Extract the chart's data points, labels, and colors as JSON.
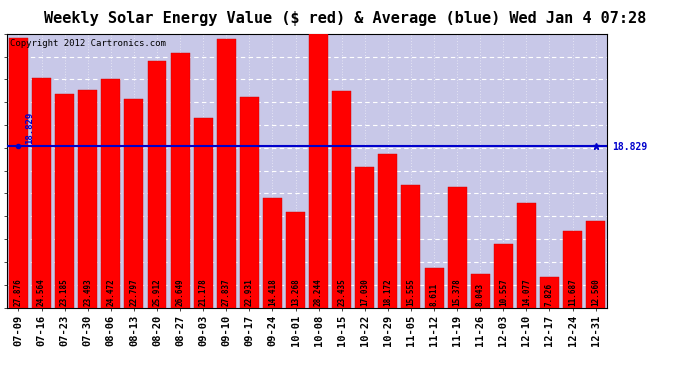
{
  "title": "Weekly Solar Energy Value ($ red) & Average (blue) Wed Jan 4 07:28",
  "copyright": "Copyright 2012 Cartronics.com",
  "categories": [
    "07-09",
    "07-16",
    "07-23",
    "07-30",
    "08-06",
    "08-13",
    "08-20",
    "08-27",
    "09-03",
    "09-10",
    "09-17",
    "09-24",
    "10-01",
    "10-08",
    "10-15",
    "10-22",
    "10-29",
    "11-05",
    "11-12",
    "11-19",
    "11-26",
    "12-03",
    "12-10",
    "12-17",
    "12-24",
    "12-31"
  ],
  "values": [
    27.876,
    24.564,
    23.185,
    23.493,
    24.472,
    22.797,
    25.912,
    26.649,
    21.178,
    27.837,
    22.931,
    14.418,
    13.268,
    28.244,
    23.435,
    17.03,
    18.172,
    15.555,
    8.611,
    15.378,
    8.043,
    10.557,
    14.077,
    7.826,
    11.687,
    12.56
  ],
  "average": 18.829,
  "bar_color": "#ff0000",
  "avg_line_color": "#0000cc",
  "background_color": "#ffffff",
  "plot_bg_color": "#c8c8e8",
  "yticks": [
    5.27,
    7.19,
    9.1,
    11.02,
    12.93,
    14.84,
    16.76,
    18.67,
    20.59,
    22.5,
    24.42,
    26.33,
    28.24
  ],
  "ylim_min": 5.27,
  "ylim_max": 28.24,
  "title_fontsize": 11,
  "copyright_fontsize": 6.5,
  "tick_fontsize": 7.5,
  "bar_label_fontsize": 5.5,
  "left_avg_label": "18.829",
  "right_avg_label": "18.829"
}
